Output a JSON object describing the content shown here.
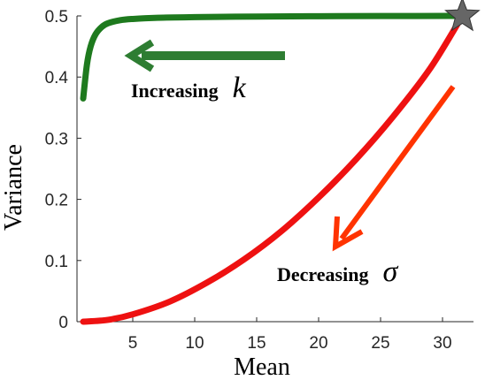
{
  "chart_data": {
    "type": "line",
    "xlabel": "Mean",
    "ylabel": "Variance",
    "xlim": [
      0.5,
      32.5
    ],
    "ylim": [
      0,
      0.5
    ],
    "x_ticks": [
      5,
      10,
      15,
      20,
      25,
      30
    ],
    "y_ticks": [
      0,
      0.1,
      0.2,
      0.3,
      0.4,
      0.5
    ],
    "x_tick_labels": [
      "5",
      "10",
      "15",
      "20",
      "25",
      "30"
    ],
    "y_tick_labels": [
      "0",
      "0.1",
      "0.2",
      "0.3",
      "0.4",
      "0.5"
    ],
    "grid": false,
    "series": [
      {
        "color": "#1e7a1e",
        "x": [
          1.0,
          1.3,
          1.6,
          2.0,
          2.5,
          3.0,
          4.0,
          5.0,
          7.0,
          10.0,
          15.0,
          20.0,
          25.0,
          31.6
        ],
        "y": [
          0.365,
          0.42,
          0.45,
          0.47,
          0.482,
          0.488,
          0.493,
          0.495,
          0.497,
          0.498,
          0.499,
          0.4995,
          0.4998,
          0.5
        ]
      },
      {
        "color": "#ee1111",
        "x": [
          1.0,
          3.0,
          5.0,
          8.0,
          11.0,
          14.0,
          17.0,
          20.0,
          23.0,
          26.0,
          29.0,
          31.6
        ],
        "y": [
          0.0,
          0.003,
          0.012,
          0.033,
          0.064,
          0.102,
          0.148,
          0.203,
          0.265,
          0.335,
          0.414,
          0.5
        ]
      }
    ],
    "marker": {
      "symbol": "star",
      "x": 31.6,
      "y": 0.5,
      "color": "#666666"
    },
    "annotations": [
      {
        "text": "Increasing",
        "symbol": "k",
        "color": "#000000",
        "arrow_color": "#2e7d32"
      },
      {
        "text": "Decreasing",
        "symbol": "σ",
        "color": "#000000",
        "arrow_color": "#ff3300"
      }
    ]
  }
}
